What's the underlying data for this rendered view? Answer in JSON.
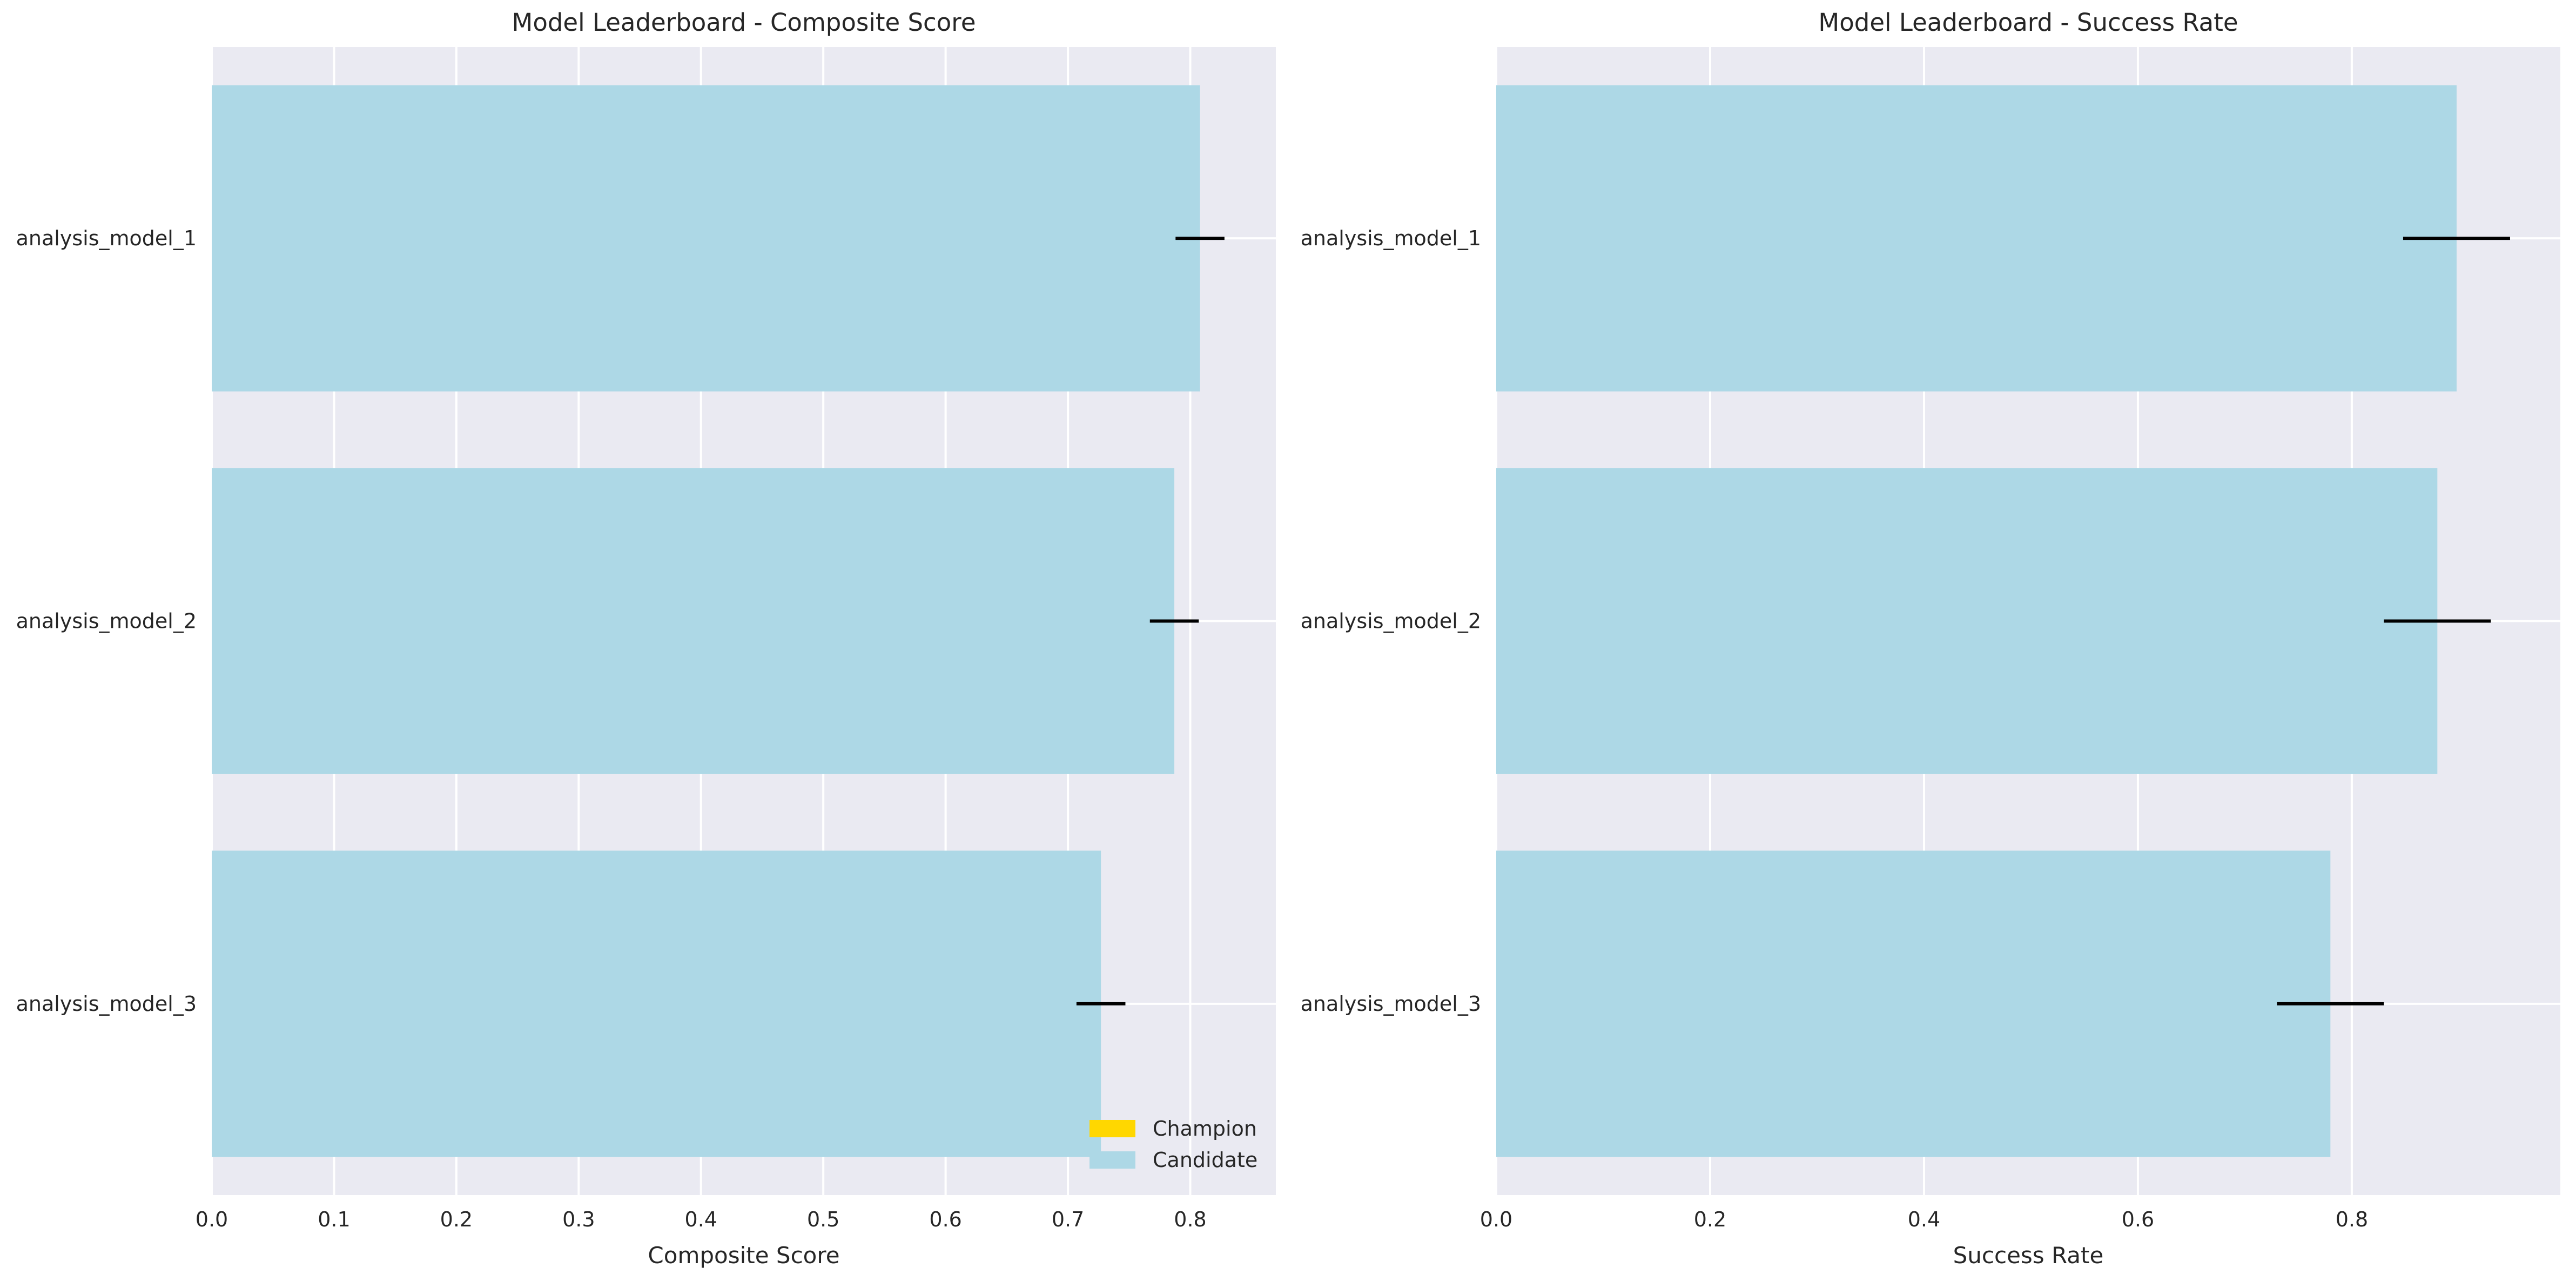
{
  "colors": {
    "plot_background": "#eaeaf2",
    "grid": "#ffffff",
    "candidate": "#add8e6",
    "champion": "#ffd700",
    "error_bar": "#000000",
    "text": "#262626"
  },
  "legend": {
    "location": "lower right",
    "entries": [
      {
        "label": "Champion",
        "color": "#ffd700"
      },
      {
        "label": "Candidate",
        "color": "#add8e6"
      }
    ]
  },
  "chart_data": [
    {
      "type": "bar",
      "orientation": "horizontal",
      "title": "Model Leaderboard - Composite Score",
      "xlabel": "Composite Score",
      "ylabel": "",
      "xlim": [
        0,
        0.87
      ],
      "xticks": [
        0.0,
        0.1,
        0.2,
        0.3,
        0.4,
        0.5,
        0.6,
        0.7,
        0.8
      ],
      "xtick_labels": [
        "0.0",
        "0.1",
        "0.2",
        "0.3",
        "0.4",
        "0.5",
        "0.6",
        "0.7",
        "0.8"
      ],
      "grid": true,
      "categories": [
        "analysis_model_1",
        "analysis_model_2",
        "analysis_model_3"
      ],
      "values": [
        0.808,
        0.787,
        0.727
      ],
      "error": [
        0.02,
        0.02,
        0.02
      ],
      "bar_roles": [
        "Candidate",
        "Candidate",
        "Candidate"
      ]
    },
    {
      "type": "bar",
      "orientation": "horizontal",
      "title": "Model Leaderboard - Success Rate",
      "xlabel": "Success Rate",
      "ylabel": "",
      "xlim": [
        0,
        0.995
      ],
      "xticks": [
        0.0,
        0.2,
        0.4,
        0.6,
        0.8
      ],
      "xtick_labels": [
        "0.0",
        "0.2",
        "0.4",
        "0.6",
        "0.8"
      ],
      "grid": true,
      "categories": [
        "analysis_model_1",
        "analysis_model_2",
        "analysis_model_3"
      ],
      "values": [
        0.898,
        0.88,
        0.78
      ],
      "error": [
        0.05,
        0.05,
        0.05
      ],
      "bar_roles": [
        "Candidate",
        "Candidate",
        "Candidate"
      ]
    }
  ]
}
